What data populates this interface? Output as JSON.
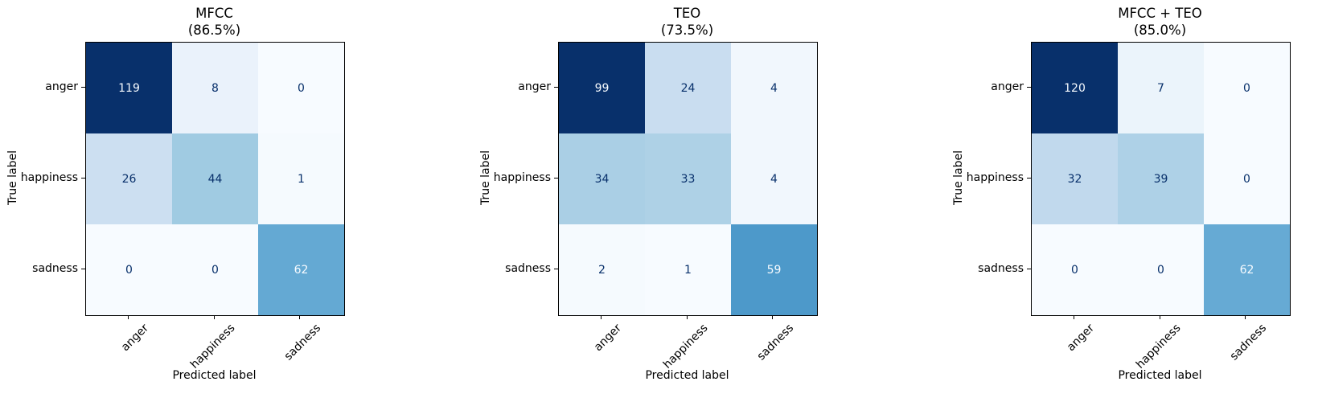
{
  "chart_meta": {
    "figure_background": "#ffffff",
    "colormap_name": "Blues",
    "colormap_anchors": [
      "#f7fbff",
      "#deebf7",
      "#c6dbef",
      "#9ecae1",
      "#6baed6",
      "#4292c6",
      "#2171b5",
      "#08519c",
      "#08306b"
    ],
    "cell_text_on_light": "#08306b",
    "cell_text_on_dark": "#f7fbff",
    "axis_color": "#000000",
    "text_color": "#000000"
  },
  "chart_data": [
    {
      "type": "heatmap",
      "title": "MFCC",
      "subtitle": "(86.5%)",
      "accuracy_percent": 86.5,
      "xlabel": "Predicted label",
      "ylabel": "True label",
      "x": [
        "anger",
        "happiness",
        "sadness"
      ],
      "y": [
        "anger",
        "happiness",
        "sadness"
      ],
      "values": [
        [
          119,
          8,
          0
        ],
        [
          26,
          44,
          1
        ],
        [
          0,
          0,
          62
        ]
      ],
      "colormap": "Blues",
      "legend": "none",
      "grid": false
    },
    {
      "type": "heatmap",
      "title": "TEO",
      "subtitle": "(73.5%)",
      "accuracy_percent": 73.5,
      "xlabel": "Predicted label",
      "ylabel": "True label",
      "x": [
        "anger",
        "happiness",
        "sadness"
      ],
      "y": [
        "anger",
        "happiness",
        "sadness"
      ],
      "values": [
        [
          99,
          24,
          4
        ],
        [
          34,
          33,
          4
        ],
        [
          2,
          1,
          59
        ]
      ],
      "colormap": "Blues",
      "legend": "none",
      "grid": false
    },
    {
      "type": "heatmap",
      "title": "MFCC + TEO",
      "subtitle": "(85.0%)",
      "accuracy_percent": 85.0,
      "xlabel": "Predicted label",
      "ylabel": "True label",
      "x": [
        "anger",
        "happiness",
        "sadness"
      ],
      "y": [
        "anger",
        "happiness",
        "sadness"
      ],
      "values": [
        [
          120,
          7,
          0
        ],
        [
          32,
          39,
          0
        ],
        [
          0,
          0,
          62
        ]
      ],
      "colormap": "Blues",
      "legend": "none",
      "grid": false
    }
  ]
}
